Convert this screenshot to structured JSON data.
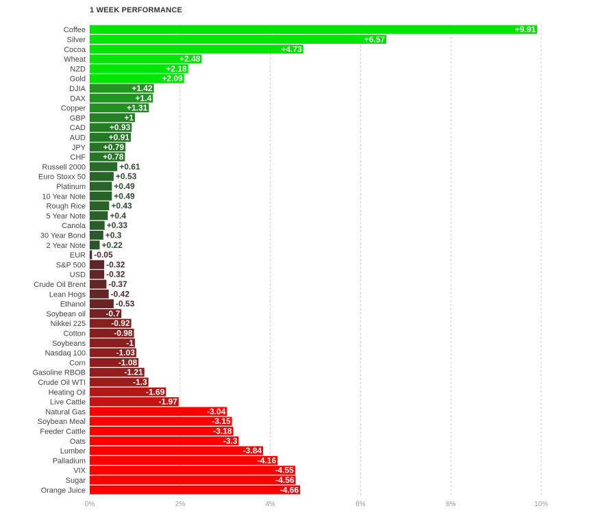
{
  "chart_data": {
    "type": "bar",
    "orientation": "horizontal",
    "title": "1 WEEK PERFORMANCE",
    "categories": [
      "Coffee",
      "Silver",
      "Cocoa",
      "Wheat",
      "NZD",
      "Gold",
      "DJIA",
      "DAX",
      "Copper",
      "GBP",
      "CAD",
      "AUD",
      "JPY",
      "CHF",
      "Russell 2000",
      "Euro Stoxx 50",
      "Platinum",
      "10 Year Note",
      "Rough Rice",
      "5 Year Note",
      "Canola",
      "30 Year Bond",
      "2 Year Note",
      "EUR",
      "S&P 500",
      "USD",
      "Crude Oil Brent",
      "Lean Hogs",
      "Ethanol",
      "Soybean oil",
      "Nikkei 225",
      "Cotton",
      "Soybeans",
      "Nasdaq 100",
      "Corn",
      "Gasoline RBOB",
      "Crude Oil WTI",
      "Heating Oil",
      "Live Cattle",
      "Natural Gas",
      "Soybean Meal",
      "Feeder Cattle",
      "Oats",
      "Lumber",
      "Palladium",
      "VIX",
      "Sugar",
      "Orange Juice"
    ],
    "values": [
      9.91,
      6.57,
      4.73,
      2.48,
      2.18,
      2.09,
      1.42,
      1.4,
      1.31,
      1,
      0.93,
      0.91,
      0.79,
      0.78,
      0.61,
      0.53,
      0.49,
      0.49,
      0.43,
      0.4,
      0.33,
      0.3,
      0.22,
      -0.05,
      -0.32,
      -0.32,
      -0.37,
      -0.42,
      -0.53,
      -0.7,
      -0.92,
      -0.98,
      -1,
      -1.03,
      -1.08,
      -1.21,
      -1.3,
      -1.69,
      -1.97,
      -3.04,
      -3.15,
      -3.18,
      -3.3,
      -3.84,
      -4.16,
      -4.55,
      -4.56,
      -4.66
    ],
    "value_labels": [
      "+9.91",
      "+6.57",
      "+4.73",
      "+2.48",
      "+2.18",
      "+2.09",
      "+1.42",
      "+1.4",
      "+1.31",
      "+1",
      "+0.93",
      "+0.91",
      "+0.79",
      "+0.78",
      "+0.61",
      "+0.53",
      "+0.49",
      "+0.49",
      "+0.43",
      "+0.4",
      "+0.33",
      "+0.3",
      "+0.22",
      "-0.05",
      "-0.32",
      "-0.32",
      "-0.37",
      "-0.42",
      "-0.53",
      "-0.7",
      "-0.92",
      "-0.98",
      "-1",
      "-1.03",
      "-1.08",
      "-1.21",
      "-1.3",
      "-1.69",
      "-1.97",
      "-3.04",
      "-3.15",
      "-3.18",
      "-3.3",
      "-3.84",
      "-4.16",
      "-4.55",
      "-4.56",
      "-4.66"
    ],
    "xticks": [
      "0%",
      "2%",
      "4%",
      "6%",
      "8%",
      "10%"
    ],
    "xtick_values": [
      0,
      2,
      4,
      6,
      8,
      10
    ],
    "xlim": [
      0,
      10
    ],
    "bar_length": "absolute value",
    "grid": true,
    "colors": {
      "positive_strong": "#00e600",
      "positive_weak": "#2d4a2d",
      "negative_weak": "#4a2a2a",
      "negative_strong": "#ff0000",
      "grid": "#cccccc",
      "tick_text": "#999999",
      "category_text": "#444444"
    }
  }
}
